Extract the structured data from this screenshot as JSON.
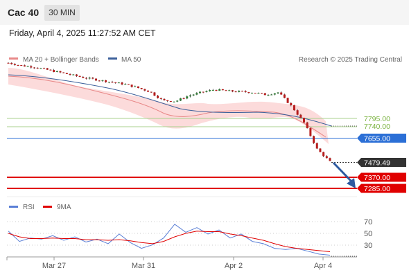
{
  "header": {
    "symbol": "Cac 40",
    "timeframe": "30 MIN",
    "datetime": "Friday, April 4, 2025 11:27:52 AM CET"
  },
  "legend": {
    "ma20_label": "MA 20 + Bollinger Bands",
    "ma50_label": "MA 50",
    "credit": "Research © 2025 Trading Central",
    "rsi_label": "RSI",
    "ma9_label": "9MA"
  },
  "colors": {
    "ma20": "#e88888",
    "ma50": "#3b5f9a",
    "band": "#fbd5d5",
    "support_green": "#a8d08d",
    "pivot_blue": "#2b6fd6",
    "resistance_red": "#e00000",
    "price_tag": "#333333",
    "rsi": "#5a7fd6",
    "rsi_ma": "#e00000",
    "up_candle": "#2e7d32",
    "down_candle": "#b71c1c",
    "arrow": "#2d5aa0"
  },
  "chart_data": [
    {
      "type": "line",
      "title": "",
      "x_ticks": [
        "Mar 27",
        "Mar 31",
        "Apr 2",
        "Apr 4"
      ],
      "price_levels": [
        {
          "label": "7795.00",
          "value": 7795,
          "kind": "green-line"
        },
        {
          "label": "7740.00",
          "value": 7740,
          "kind": "green-line"
        },
        {
          "label": "7655.00",
          "value": 7655,
          "kind": "blue-tag"
        },
        {
          "label": "7479.49",
          "value": 7479.49,
          "kind": "current-price"
        },
        {
          "label": "7370.00",
          "value": 7370,
          "kind": "red-line"
        },
        {
          "label": "7285.00",
          "value": 7285,
          "kind": "red-line"
        }
      ],
      "series": [
        {
          "name": "MA 20 + Bollinger Bands",
          "values": [
            8185,
            8168,
            8150,
            8130,
            8108,
            8080,
            8050,
            8020,
            7985,
            7955,
            7930,
            7905,
            7885,
            7870,
            7860,
            7855,
            7850,
            7848,
            7847,
            7840,
            7820,
            7790,
            7755,
            7712,
            7660
          ]
        },
        {
          "name": "MA 50",
          "values": [
            8205,
            8195,
            8183,
            8170,
            8155,
            8140,
            8122,
            8100,
            8078,
            8055,
            8030,
            8003,
            7975,
            7948,
            7920,
            7895,
            7870,
            7850,
            7838,
            7830,
            7822,
            7812,
            7795,
            7770,
            7740
          ]
        }
      ],
      "close": [
        8200,
        8180,
        8170,
        8150,
        8130,
        8110,
        8090,
        8075,
        8060,
        8045,
        8020,
        7990,
        7925,
        7920,
        7960,
        7985,
        8005,
        7995,
        7990,
        7985,
        7968,
        7985,
        7885,
        7762,
        7570,
        7479.49
      ],
      "projection": {
        "from": 7479.49,
        "to": 7285
      }
    },
    {
      "type": "line",
      "title": "",
      "y_ticks": [
        "70",
        "50",
        "30"
      ],
      "ylim": [
        15,
        85
      ],
      "series": [
        {
          "name": "RSI",
          "values": [
            60,
            42,
            48,
            46,
            52,
            44,
            50,
            41,
            46,
            38,
            55,
            40,
            30,
            36,
            48,
            72,
            58,
            66,
            55,
            62,
            48,
            55,
            42,
            38,
            30,
            28,
            30,
            25,
            20,
            18
          ]
        },
        {
          "name": "9MA",
          "values": [
            56,
            50,
            47,
            47,
            48,
            47,
            47,
            45,
            45,
            44,
            45,
            43,
            40,
            38,
            42,
            50,
            56,
            60,
            59,
            59,
            55,
            52,
            48,
            44,
            38,
            33,
            30,
            28,
            26,
            24
          ]
        }
      ]
    }
  ]
}
